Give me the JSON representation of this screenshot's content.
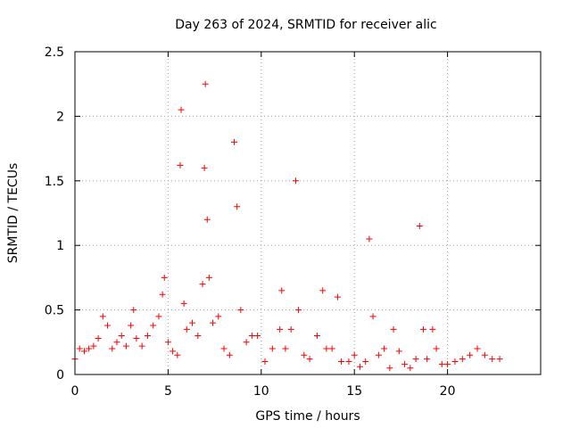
{
  "chart_data": {
    "type": "scatter",
    "title": "Day 263 of 2024, SRMTID for receiver alic",
    "xlabel": "GPS time / hours",
    "ylabel": "SRMTID / TECUs",
    "xlim": [
      0,
      25
    ],
    "ylim": [
      0,
      2.5
    ],
    "xticks": [
      0,
      5,
      10,
      15,
      20
    ],
    "xtick_labels": [
      "0",
      "5",
      "10",
      "15",
      "20"
    ],
    "yticks": [
      0,
      0.5,
      1,
      1.5,
      2,
      2.5
    ],
    "ytick_labels": [
      "0",
      "0.5",
      "1",
      "1.5",
      "2",
      "2.5"
    ],
    "grid": true,
    "marker": "+",
    "series": [
      {
        "name": "SRMTID",
        "color": "#ff0000",
        "points": [
          [
            0.0,
            0.12
          ],
          [
            0.25,
            0.2
          ],
          [
            0.5,
            0.18
          ],
          [
            0.75,
            0.2
          ],
          [
            1.0,
            0.22
          ],
          [
            1.25,
            0.28
          ],
          [
            1.5,
            0.45
          ],
          [
            1.75,
            0.38
          ],
          [
            2.0,
            0.2
          ],
          [
            2.25,
            0.25
          ],
          [
            2.5,
            0.3
          ],
          [
            2.75,
            0.22
          ],
          [
            3.0,
            0.38
          ],
          [
            3.15,
            0.5
          ],
          [
            3.3,
            0.28
          ],
          [
            3.6,
            0.22
          ],
          [
            3.9,
            0.3
          ],
          [
            4.2,
            0.38
          ],
          [
            4.5,
            0.45
          ],
          [
            4.7,
            0.62
          ],
          [
            4.8,
            0.75
          ],
          [
            5.0,
            0.25
          ],
          [
            5.25,
            0.18
          ],
          [
            5.5,
            0.15
          ],
          [
            5.65,
            1.62
          ],
          [
            5.7,
            2.05
          ],
          [
            5.85,
            0.55
          ],
          [
            6.0,
            0.35
          ],
          [
            6.3,
            0.4
          ],
          [
            6.6,
            0.3
          ],
          [
            6.85,
            0.7
          ],
          [
            6.95,
            1.6
          ],
          [
            7.0,
            2.25
          ],
          [
            7.1,
            1.2
          ],
          [
            7.2,
            0.75
          ],
          [
            7.4,
            0.4
          ],
          [
            7.7,
            0.45
          ],
          [
            8.0,
            0.2
          ],
          [
            8.3,
            0.15
          ],
          [
            8.55,
            1.8
          ],
          [
            8.7,
            1.3
          ],
          [
            8.9,
            0.5
          ],
          [
            9.2,
            0.25
          ],
          [
            9.5,
            0.3
          ],
          [
            9.8,
            0.3
          ],
          [
            10.2,
            0.1
          ],
          [
            10.6,
            0.2
          ],
          [
            11.0,
            0.35
          ],
          [
            11.1,
            0.65
          ],
          [
            11.3,
            0.2
          ],
          [
            11.6,
            0.35
          ],
          [
            11.85,
            1.5
          ],
          [
            12.0,
            0.5
          ],
          [
            12.3,
            0.15
          ],
          [
            12.6,
            0.12
          ],
          [
            13.0,
            0.3
          ],
          [
            13.3,
            0.65
          ],
          [
            13.5,
            0.2
          ],
          [
            13.8,
            0.2
          ],
          [
            14.1,
            0.6
          ],
          [
            14.3,
            0.1
          ],
          [
            14.7,
            0.1
          ],
          [
            15.0,
            0.15
          ],
          [
            15.3,
            0.06
          ],
          [
            15.6,
            0.1
          ],
          [
            15.8,
            1.05
          ],
          [
            16.0,
            0.45
          ],
          [
            16.3,
            0.15
          ],
          [
            16.6,
            0.2
          ],
          [
            16.9,
            0.05
          ],
          [
            17.1,
            0.35
          ],
          [
            17.4,
            0.18
          ],
          [
            17.7,
            0.08
          ],
          [
            18.0,
            0.05
          ],
          [
            18.3,
            0.12
          ],
          [
            18.5,
            1.15
          ],
          [
            18.7,
            0.35
          ],
          [
            18.9,
            0.12
          ],
          [
            19.2,
            0.35
          ],
          [
            19.4,
            0.2
          ],
          [
            19.7,
            0.08
          ],
          [
            20.0,
            0.08
          ],
          [
            20.4,
            0.1
          ],
          [
            20.8,
            0.12
          ],
          [
            21.2,
            0.15
          ],
          [
            21.6,
            0.2
          ],
          [
            22.0,
            0.15
          ],
          [
            22.4,
            0.12
          ],
          [
            22.8,
            0.12
          ]
        ]
      }
    ]
  }
}
